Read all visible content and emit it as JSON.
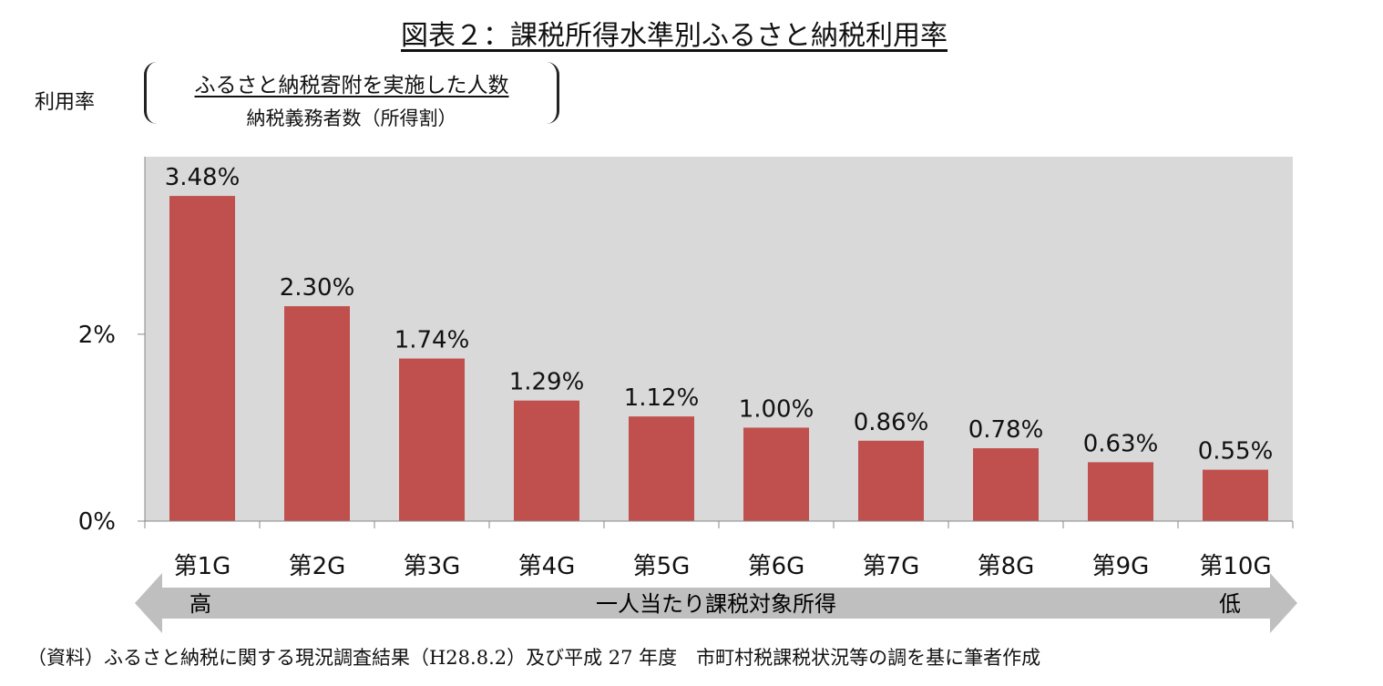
{
  "title": "図表２：課税所得水準別ふるさと納税利用率",
  "formula": {
    "label": "利用率",
    "numerator": "ふるさと納税寄附を実施した人数",
    "denominator": "納税義務者数（所得割）"
  },
  "arrow": {
    "left_label": "高",
    "center_label": "一人当たり課税対象所得",
    "right_label": "低"
  },
  "footnote": "（資料）ふるさと納税に関する現況調査結果（H28.8.2）及び平成 27 年度　市町村税課税状況等の調を基に筆者作成",
  "colors": {
    "bar": "#c0504d",
    "plot_bg": "#d9d9d9",
    "arrow": "#bfbfbf"
  },
  "chart_data": {
    "type": "bar",
    "categories": [
      "第1G",
      "第2G",
      "第3G",
      "第4G",
      "第5G",
      "第6G",
      "第7G",
      "第8G",
      "第9G",
      "第10G"
    ],
    "values": [
      3.48,
      2.3,
      1.74,
      1.29,
      1.12,
      1.0,
      0.86,
      0.78,
      0.63,
      0.55
    ],
    "value_labels": [
      "3.48%",
      "2.30%",
      "1.74%",
      "1.29%",
      "1.12%",
      "1.00%",
      "0.86%",
      "0.78%",
      "0.63%",
      "0.55%"
    ],
    "yticks": [
      0,
      2
    ],
    "ytick_labels": [
      "0%",
      "2%"
    ],
    "ylim": [
      0,
      3.9
    ],
    "grid": false
  }
}
